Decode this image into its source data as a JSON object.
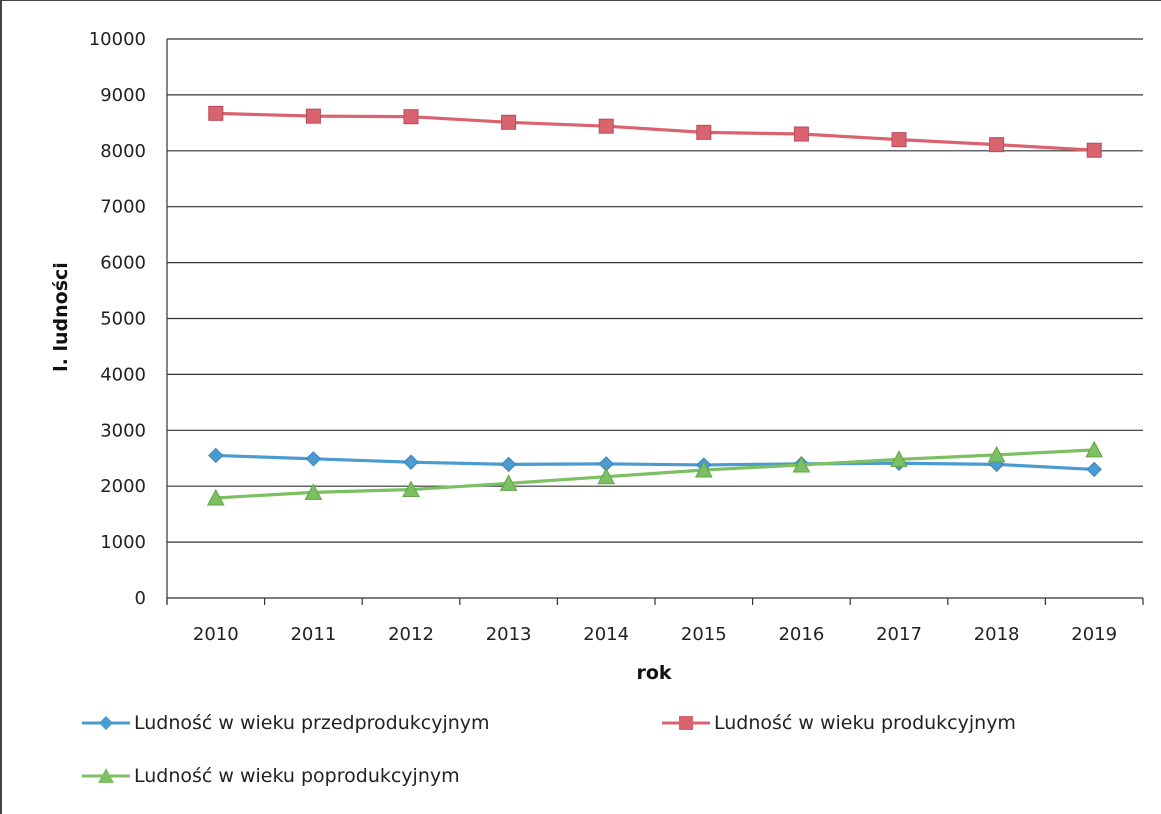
{
  "chart_data": {
    "type": "line",
    "xlabel": "rok",
    "ylabel": "l. ludności",
    "ylim": [
      0,
      10000
    ],
    "yticks": [
      0,
      1000,
      2000,
      3000,
      4000,
      5000,
      6000,
      7000,
      8000,
      9000,
      10000
    ],
    "categories": [
      "2010",
      "2011",
      "2012",
      "2013",
      "2014",
      "2015",
      "2016",
      "2017",
      "2018",
      "2019"
    ],
    "grid": "horizontal",
    "legend_position": "bottom",
    "series": [
      {
        "name": "Ludność w wieku przedprodukcyjnym",
        "color": "#4a9bd1",
        "marker": "diamond",
        "values": [
          2550,
          2490,
          2430,
          2390,
          2400,
          2380,
          2400,
          2410,
          2390,
          2300
        ]
      },
      {
        "name": "Ludność w wieku produkcyjnym",
        "color": "#d9636f",
        "marker": "square",
        "values": [
          8670,
          8620,
          8610,
          8510,
          8440,
          8330,
          8300,
          8200,
          8110,
          8010
        ]
      },
      {
        "name": "Ludność w wieku poprodukcyjnym",
        "color": "#7dbf63",
        "marker": "triangle",
        "values": [
          1790,
          1890,
          1940,
          2050,
          2170,
          2290,
          2380,
          2480,
          2560,
          2650
        ]
      }
    ]
  }
}
